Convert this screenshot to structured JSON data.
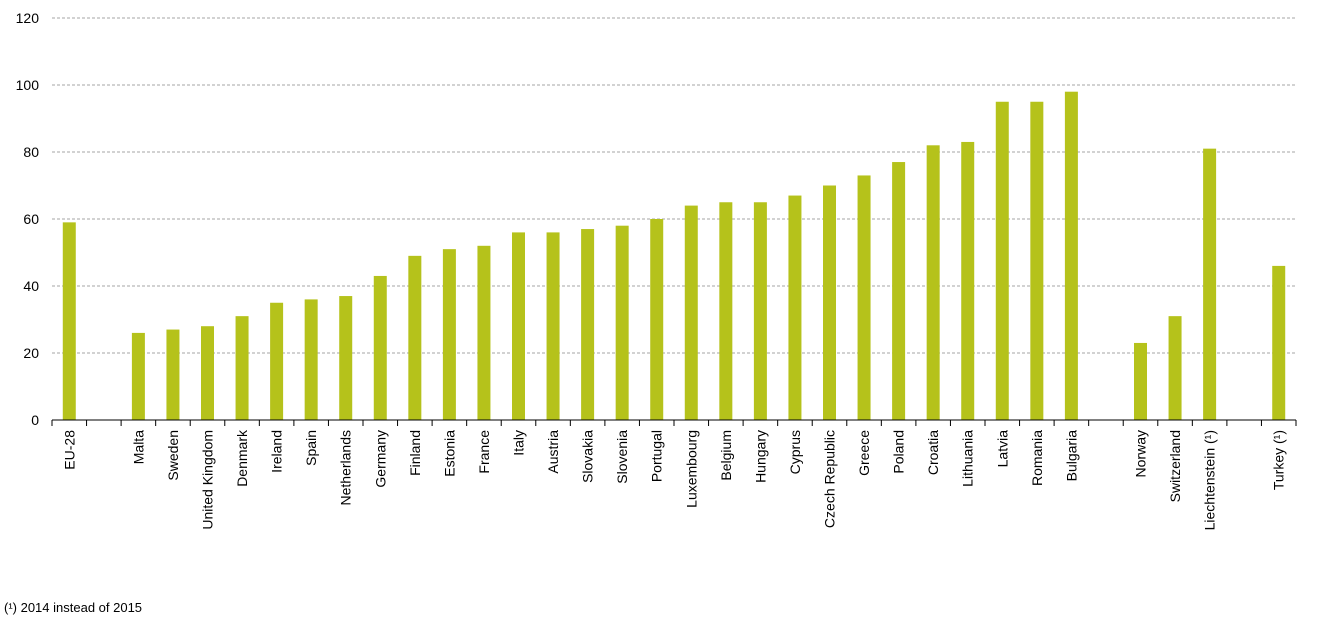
{
  "chart_data": {
    "type": "bar",
    "title": "",
    "xlabel": "",
    "ylabel": "",
    "ylim": [
      0,
      120
    ],
    "yticks": [
      0,
      20,
      40,
      60,
      80,
      100,
      120
    ],
    "grid": true,
    "categories": [
      "EU-28",
      "",
      "Malta",
      "Sweden",
      "United Kingdom",
      "Denmark",
      "Ireland",
      "Spain",
      "Netherlands",
      "Germany",
      "Finland",
      "Estonia",
      "France",
      "Italy",
      "Austria",
      "Slovakia",
      "Slovenia",
      "Portugal",
      "Luxembourg",
      "Belgium",
      "Hungary",
      "Cyprus",
      "Czech Republic",
      "Greece",
      "Poland",
      "Croatia",
      "Lithuania",
      "Latvia",
      "Romania",
      "Bulgaria",
      "",
      "Norway",
      "Switzerland",
      "Liechtenstein (¹)",
      "",
      "Turkey (¹)"
    ],
    "values": [
      59,
      null,
      26,
      27,
      28,
      31,
      35,
      36,
      37,
      43,
      49,
      51,
      52,
      56,
      56,
      57,
      58,
      60,
      64,
      65,
      65,
      67,
      70,
      73,
      77,
      82,
      83,
      95,
      95,
      98,
      null,
      23,
      31,
      81,
      null,
      46
    ],
    "bar_color": "#b5c21b"
  },
  "footnote": "(¹) 2014 instead of 2015"
}
